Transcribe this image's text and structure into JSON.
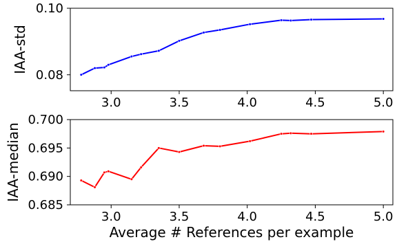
{
  "chart_data": [
    {
      "type": "line",
      "title": "",
      "xlabel": "",
      "ylabel": "IAA-std",
      "xlim": [
        2.7,
        5.07
      ],
      "ylim": [
        0.0752,
        0.1
      ],
      "xticks": [
        3.0,
        3.5,
        4.0,
        4.5,
        5.0
      ],
      "xtick_labels": [
        "3.0",
        "3.5",
        "4.0",
        "4.5",
        "5.0"
      ],
      "yticks": [
        0.08,
        0.1
      ],
      "ytick_labels": [
        "0.08",
        "0.10"
      ],
      "grid": false,
      "series": [
        {
          "color": "#0000ff",
          "marker": "dot",
          "x": [
            2.78,
            2.88,
            2.95,
            2.98,
            3.15,
            3.22,
            3.35,
            3.5,
            3.68,
            3.8,
            4.02,
            4.25,
            4.32,
            4.47,
            5.0
          ],
          "y": [
            0.08,
            0.082,
            0.0822,
            0.083,
            0.0855,
            0.0862,
            0.0872,
            0.0902,
            0.0927,
            0.0935,
            0.0952,
            0.0964,
            0.0963,
            0.0966,
            0.0968
          ]
        }
      ]
    },
    {
      "type": "line",
      "title": "",
      "xlabel": "Average # References per example",
      "ylabel": "IAA-median",
      "xlim": [
        2.7,
        5.07
      ],
      "ylim": [
        0.685,
        0.7
      ],
      "xticks": [
        3.0,
        3.5,
        4.0,
        4.5,
        5.0
      ],
      "xtick_labels": [
        "3.0",
        "3.5",
        "4.0",
        "4.5",
        "5.0"
      ],
      "yticks": [
        0.685,
        0.69,
        0.695,
        0.7
      ],
      "ytick_labels": [
        "0.685",
        "0.690",
        "0.695",
        "0.700"
      ],
      "grid": false,
      "series": [
        {
          "color": "#ff0000",
          "marker": "dot",
          "x": [
            2.78,
            2.88,
            2.95,
            2.98,
            3.15,
            3.22,
            3.35,
            3.5,
            3.68,
            3.8,
            4.02,
            4.25,
            4.32,
            4.47,
            5.0
          ],
          "y": [
            0.6893,
            0.6881,
            0.6907,
            0.6909,
            0.6895,
            0.6916,
            0.695,
            0.6943,
            0.6954,
            0.6953,
            0.6962,
            0.6975,
            0.6976,
            0.6975,
            0.6979
          ]
        }
      ]
    }
  ]
}
